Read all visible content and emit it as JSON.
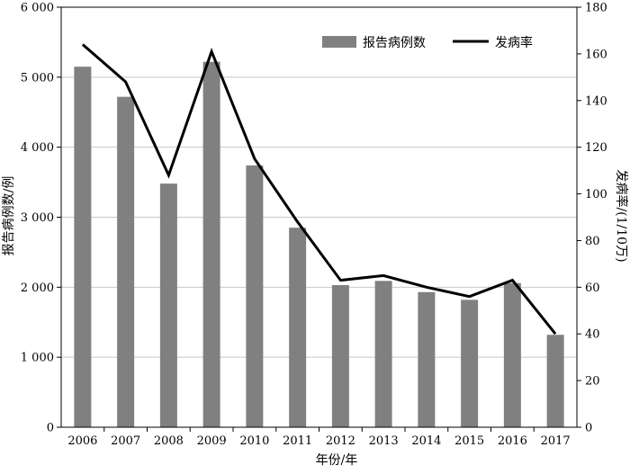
{
  "chart_data": {
    "type": "bar+line",
    "categories": [
      "2006",
      "2007",
      "2008",
      "2009",
      "2010",
      "2011",
      "2012",
      "2013",
      "2014",
      "2015",
      "2016",
      "2017"
    ],
    "series": [
      {
        "name": "报告病例数",
        "type": "bar",
        "axis": "left",
        "color": "#808080",
        "values": [
          5150,
          4720,
          3480,
          5220,
          3740,
          2850,
          2030,
          2090,
          1930,
          1820,
          2060,
          1320
        ]
      },
      {
        "name": "发病率",
        "type": "line",
        "axis": "right",
        "color": "#000000",
        "values": [
          164,
          148,
          108,
          161,
          115,
          88,
          63,
          65,
          60,
          56,
          63,
          40
        ]
      }
    ],
    "xlabel": "年份/年",
    "ylabel_left": "报告病例数/例",
    "ylabel_right": "发病率/(1/10万)",
    "ylim_left": [
      0,
      6000
    ],
    "ylim_right": [
      0,
      180
    ],
    "yticks_left": [
      "0",
      "1 000",
      "2 000",
      "3 000",
      "4 000",
      "5 000",
      "6 000"
    ],
    "yticks_right": [
      "0",
      "20",
      "40",
      "60",
      "80",
      "100",
      "120",
      "140",
      "160",
      "180"
    ],
    "grid": "horizontal",
    "legend_position": "top-right"
  }
}
